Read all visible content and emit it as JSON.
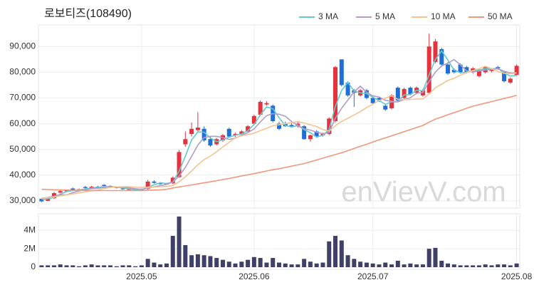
{
  "chart_data": {
    "type": "candlestick",
    "title": "로보티즈(108490)",
    "watermark": "enVievV.com",
    "grid": true,
    "up_color": "#e5323c",
    "down_color": "#1f6fd8",
    "categories": [
      null,
      null,
      null,
      null,
      null,
      null,
      null,
      null,
      null,
      null,
      null,
      null,
      null,
      null,
      null,
      null,
      "2025.05",
      null,
      null,
      null,
      null,
      null,
      null,
      null,
      null,
      null,
      null,
      null,
      null,
      null,
      null,
      null,
      null,
      null,
      "2025.06",
      null,
      null,
      null,
      null,
      null,
      null,
      null,
      null,
      null,
      null,
      null,
      null,
      null,
      null,
      null,
      null,
      null,
      null,
      "2025.07",
      null,
      null,
      null,
      null,
      null,
      null,
      null,
      null,
      null,
      null,
      null,
      null,
      null,
      null,
      null,
      null,
      null,
      null,
      null,
      null,
      null,
      null,
      "2025.08"
    ],
    "ohlc": [
      [
        30800,
        31000,
        29500,
        29800
      ],
      [
        30000,
        31500,
        29800,
        31000
      ],
      [
        31000,
        33500,
        30700,
        33000
      ],
      [
        33200,
        34200,
        33000,
        33800
      ],
      [
        33800,
        34400,
        33500,
        34000
      ],
      [
        34800,
        35200,
        34000,
        34300
      ],
      [
        33800,
        34800,
        33600,
        34500
      ],
      [
        35400,
        35800,
        34800,
        35000
      ],
      [
        35000,
        35800,
        34800,
        35500
      ],
      [
        35500,
        35800,
        35000,
        35200
      ],
      [
        36200,
        36500,
        35600,
        35800
      ],
      [
        35800,
        36000,
        35200,
        35500
      ],
      [
        35400,
        35600,
        34800,
        35000
      ],
      [
        34800,
        35000,
        34300,
        34500
      ],
      [
        34400,
        34900,
        34100,
        34500
      ],
      [
        34500,
        34700,
        33800,
        34000
      ],
      [
        34200,
        34800,
        33900,
        34500
      ],
      [
        34600,
        38200,
        34400,
        37500
      ],
      [
        37500,
        38000,
        36700,
        37000
      ],
      [
        37000,
        37300,
        36300,
        36500
      ],
      [
        36600,
        37000,
        36200,
        36500
      ],
      [
        36800,
        39500,
        36500,
        39000
      ],
      [
        39200,
        49800,
        39000,
        49000
      ],
      [
        52000,
        57000,
        51000,
        54000
      ],
      [
        56000,
        60500,
        55000,
        58000
      ],
      [
        57500,
        64500,
        57000,
        58500
      ],
      [
        58000,
        59000,
        53000,
        53500
      ],
      [
        54000,
        55000,
        51000,
        51500
      ],
      [
        52000,
        54500,
        51500,
        54000
      ],
      [
        53500,
        56000,
        53000,
        55500
      ],
      [
        58000,
        58500,
        54500,
        55000
      ],
      [
        55500,
        56500,
        54800,
        56000
      ],
      [
        56000,
        57500,
        55500,
        57000
      ],
      [
        57000,
        59500,
        56500,
        59000
      ],
      [
        60000,
        63500,
        59500,
        63000
      ],
      [
        63500,
        69000,
        63000,
        68500
      ],
      [
        67500,
        68800,
        67000,
        68000
      ],
      [
        67000,
        67500,
        60500,
        61000
      ],
      [
        60000,
        60800,
        57500,
        58000
      ],
      [
        60200,
        60800,
        58800,
        59000
      ],
      [
        59500,
        60200,
        58500,
        59000
      ],
      [
        59000,
        60800,
        58500,
        60000
      ],
      [
        59000,
        59500,
        53800,
        54000
      ],
      [
        54000,
        55800,
        53000,
        55500
      ],
      [
        57000,
        57500,
        54500,
        55000
      ],
      [
        55500,
        56500,
        55000,
        56000
      ],
      [
        56000,
        62500,
        55500,
        62000
      ],
      [
        61000,
        82500,
        60500,
        82000
      ],
      [
        85000,
        85000,
        74500,
        75000
      ],
      [
        76000,
        76500,
        70500,
        71000
      ],
      [
        73000,
        73500,
        66500,
        72000
      ],
      [
        71000,
        73500,
        70500,
        73000
      ],
      [
        73000,
        73500,
        69500,
        70000
      ],
      [
        70000,
        70500,
        67500,
        68000
      ],
      [
        70000,
        70500,
        68500,
        69000
      ],
      [
        67000,
        67500,
        65000,
        65500
      ],
      [
        66000,
        71500,
        65500,
        71000
      ],
      [
        74000,
        74500,
        68500,
        69000
      ],
      [
        70000,
        74000,
        69500,
        73500
      ],
      [
        74000,
        74500,
        71000,
        71500
      ],
      [
        72000,
        74500,
        71500,
        74000
      ],
      [
        71000,
        73500,
        70500,
        73000
      ],
      [
        72000,
        95000,
        71500,
        90000
      ],
      [
        84000,
        93000,
        83500,
        92000
      ],
      [
        89000,
        89500,
        82500,
        83000
      ],
      [
        83000,
        84000,
        79000,
        79500
      ],
      [
        81000,
        81500,
        79500,
        80000
      ],
      [
        83000,
        83500,
        79500,
        80000
      ],
      [
        82000,
        82500,
        79500,
        80000
      ],
      [
        80000,
        82000,
        79500,
        81500
      ],
      [
        78500,
        81500,
        78000,
        81000
      ],
      [
        80000,
        82500,
        79500,
        82000
      ],
      [
        80500,
        81500,
        80000,
        81000
      ],
      [
        82000,
        82500,
        81000,
        81500
      ],
      [
        80000,
        80500,
        76000,
        76500
      ],
      [
        76000,
        78000,
        75500,
        77500
      ],
      [
        79000,
        83000,
        78500,
        82500
      ]
    ],
    "series": [
      {
        "name": "3 MA",
        "color": "#63c9c9",
        "values": [
          30500,
          30800,
          31300,
          32600,
          33600,
          34000,
          34300,
          34600,
          35000,
          35200,
          35500,
          35500,
          35400,
          35000,
          34700,
          34300,
          34300,
          35300,
          36300,
          37000,
          36700,
          37300,
          41500,
          47300,
          53700,
          56800,
          56700,
          54500,
          53000,
          53700,
          54800,
          55500,
          56000,
          57300,
          59700,
          63500,
          66500,
          65800,
          62300,
          59300,
          58700,
          59300,
          57700,
          56500,
          54800,
          55500,
          57700,
          66700,
          73000,
          76000,
          72700,
          72000,
          71700,
          70300,
          69000,
          67500,
          68500,
          68500,
          71200,
          71300,
          73000,
          72800,
          79000,
          85000,
          88300,
          84800,
          80800,
          79800,
          80000,
          80500,
          80800,
          81500,
          81300,
          81500,
          79700,
          78500,
          78800
        ]
      },
      {
        "name": "5 MA",
        "color": "#b39bc9",
        "values": [
          31000,
          31300,
          31800,
          32400,
          32300,
          33200,
          33900,
          34300,
          34700,
          34900,
          35200,
          35400,
          35400,
          35300,
          35100,
          34700,
          34500,
          34900,
          35500,
          35900,
          36400,
          37300,
          39600,
          43000,
          47300,
          51700,
          54600,
          55100,
          55100,
          54600,
          53900,
          54400,
          55500,
          56500,
          58000,
          60700,
          63100,
          63900,
          63700,
          62900,
          60800,
          59400,
          58000,
          57500,
          56700,
          56100,
          56500,
          62100,
          66000,
          69200,
          72400,
          74600,
          72200,
          70800,
          70400,
          69100,
          68700,
          68500,
          69400,
          70100,
          71800,
          72200,
          76400,
          80100,
          82500,
          83500,
          84900,
          82900,
          80500,
          80200,
          80500,
          80900,
          81100,
          81400,
          80400,
          79700,
          79800
        ]
      },
      {
        "name": "10 MA",
        "color": "#f4c38f",
        "values": [
          31000,
          31200,
          31500,
          31900,
          32300,
          32700,
          33100,
          33500,
          33900,
          34200,
          34800,
          35200,
          35400,
          35500,
          35500,
          35300,
          35200,
          35300,
          35400,
          35500,
          35600,
          36000,
          37400,
          39300,
          41600,
          44000,
          46000,
          47400,
          49100,
          51000,
          52800,
          54500,
          55300,
          55800,
          56300,
          57300,
          58200,
          59200,
          59600,
          60000,
          60400,
          60800,
          60300,
          59600,
          58900,
          57700,
          57100,
          59200,
          60900,
          62100,
          63400,
          64700,
          66300,
          67600,
          69000,
          69900,
          70800,
          69500,
          69400,
          69400,
          69600,
          69600,
          71600,
          74000,
          75400,
          76800,
          77700,
          78800,
          79900,
          80700,
          81400,
          82300,
          81400,
          80300,
          79600,
          79400,
          79700
        ]
      },
      {
        "name": "50 MA",
        "color": "#f0977c",
        "values": [
          34500,
          34400,
          34300,
          34200,
          34200,
          34100,
          34100,
          34000,
          34000,
          34000,
          34000,
          34000,
          34000,
          34000,
          34000,
          34000,
          34000,
          34100,
          34200,
          34300,
          34500,
          35000,
          35400,
          35800,
          36200,
          36600,
          37000,
          37400,
          37800,
          38300,
          38700,
          39200,
          39700,
          40100,
          40600,
          41100,
          41600,
          42100,
          42500,
          43000,
          43500,
          44000,
          44500,
          45200,
          45900,
          46600,
          47300,
          48000,
          48700,
          49500,
          50400,
          51200,
          52000,
          52900,
          53700,
          54500,
          55300,
          56100,
          56900,
          57700,
          58500,
          59300,
          60600,
          61800,
          62600,
          63500,
          64300,
          65100,
          66000,
          66800,
          67400,
          68000,
          68600,
          69200,
          69800,
          70400,
          71000
        ]
      }
    ],
    "ylim": [
      27200,
      98400
    ],
    "yticks": [
      {
        "value": 30000,
        "label": "30,000"
      },
      {
        "value": 40000,
        "label": "40,000"
      },
      {
        "value": 50000,
        "label": "50,000"
      },
      {
        "value": 60000,
        "label": "60,000"
      },
      {
        "value": 70000,
        "label": "70,000"
      },
      {
        "value": 80000,
        "label": "80,000"
      },
      {
        "value": 90000,
        "label": "90,000"
      }
    ],
    "volume": {
      "color": "#3e4068",
      "ylim": [
        0,
        5800000
      ],
      "yticks": [
        0,
        {
          "value": 2000000,
          "label": "2M"
        },
        {
          "value": 4000000,
          "label": "4M"
        }
      ],
      "values": [
        200000,
        200000,
        200000,
        300000,
        200000,
        200000,
        100000,
        200000,
        300000,
        200000,
        200000,
        200000,
        100000,
        200000,
        200000,
        100000,
        200000,
        900000,
        500000,
        300000,
        400000,
        3400000,
        5500000,
        2400000,
        1300000,
        1400000,
        1300000,
        1200000,
        1000000,
        800000,
        600000,
        400000,
        600000,
        800000,
        1100000,
        1000000,
        500000,
        1000000,
        500000,
        400000,
        300000,
        300000,
        900000,
        600000,
        400000,
        500000,
        2800000,
        3400000,
        2900000,
        1300000,
        900000,
        600000,
        500000,
        400000,
        300000,
        500000,
        300000,
        700000,
        300000,
        400000,
        300000,
        300000,
        2000000,
        2100000,
        700000,
        400000,
        300000,
        200000,
        200000,
        200000,
        200000,
        300000,
        200000,
        300000,
        300000,
        200000,
        400000
      ]
    }
  }
}
